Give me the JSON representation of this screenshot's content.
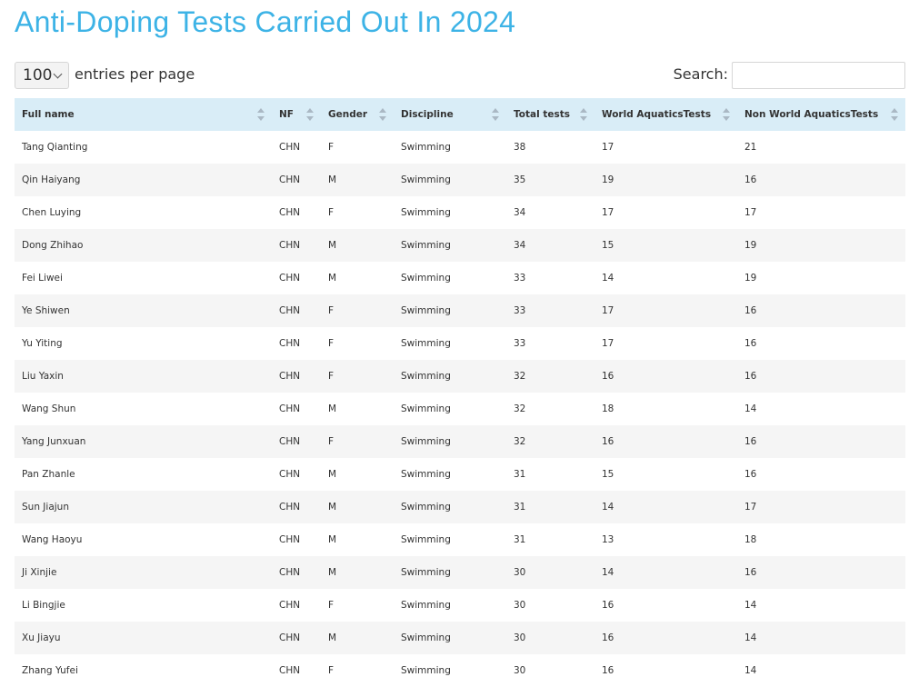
{
  "header": {
    "title": "Anti-Doping Tests Carried Out In 2024"
  },
  "controls": {
    "page_length": "100",
    "page_length_label": "entries per page",
    "search_label": "Search:"
  },
  "table": {
    "columns": [
      "Full name",
      "NF",
      "Gender",
      "Discipline",
      "Total tests",
      "World AquaticsTests",
      "Non World AquaticsTests"
    ],
    "rows": [
      [
        "Tang Qianting",
        "CHN",
        "F",
        "Swimming",
        38,
        17,
        21
      ],
      [
        "Qin Haiyang",
        "CHN",
        "M",
        "Swimming",
        35,
        19,
        16
      ],
      [
        "Chen Luying",
        "CHN",
        "F",
        "Swimming",
        34,
        17,
        17
      ],
      [
        "Dong Zhihao",
        "CHN",
        "M",
        "Swimming",
        34,
        15,
        19
      ],
      [
        "Fei Liwei",
        "CHN",
        "M",
        "Swimming",
        33,
        14,
        19
      ],
      [
        "Ye Shiwen",
        "CHN",
        "F",
        "Swimming",
        33,
        17,
        16
      ],
      [
        "Yu Yiting",
        "CHN",
        "F",
        "Swimming",
        33,
        17,
        16
      ],
      [
        "Liu Yaxin",
        "CHN",
        "F",
        "Swimming",
        32,
        16,
        16
      ],
      [
        "Wang Shun",
        "CHN",
        "M",
        "Swimming",
        32,
        18,
        14
      ],
      [
        "Yang Junxuan",
        "CHN",
        "F",
        "Swimming",
        32,
        16,
        16
      ],
      [
        "Pan Zhanle",
        "CHN",
        "M",
        "Swimming",
        31,
        15,
        16
      ],
      [
        "Sun Jiajun",
        "CHN",
        "M",
        "Swimming",
        31,
        14,
        17
      ],
      [
        "Wang Haoyu",
        "CHN",
        "M",
        "Swimming",
        31,
        13,
        18
      ],
      [
        "Ji Xinjie",
        "CHN",
        "M",
        "Swimming",
        30,
        14,
        16
      ],
      [
        "Li Bingjie",
        "CHN",
        "F",
        "Swimming",
        30,
        16,
        14
      ],
      [
        "Xu Jiayu",
        "CHN",
        "M",
        "Swimming",
        30,
        16,
        14
      ],
      [
        "Zhang Yufei",
        "CHN",
        "F",
        "Swimming",
        30,
        16,
        14
      ]
    ]
  }
}
